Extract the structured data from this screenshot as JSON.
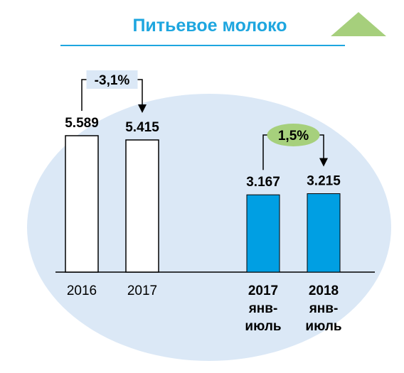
{
  "title": "Питьевое молоко",
  "colors": {
    "title": "#1ea6df",
    "ellipse": "#dbe8f6",
    "rule": "#1ea6df",
    "triangle": "#a6cf7c",
    "bar_annual": "#ffffff",
    "bar_period": "#009fe3",
    "badge_green": "#a6d07c"
  },
  "chart_data": {
    "type": "bar",
    "categories": [
      "2016",
      "2017",
      "2017 янв-июль",
      "2018 янв-июль"
    ],
    "values": [
      5589,
      5415,
      3167,
      3215
    ],
    "value_labels": [
      "5.589",
      "5.415",
      "3.167",
      "3.215"
    ],
    "x_labels": [
      [
        "2016"
      ],
      [
        "2017"
      ],
      [
        "2017",
        "янв-",
        "июль"
      ],
      [
        "2018",
        "янв-",
        "июль"
      ]
    ],
    "annotations": [
      {
        "text": "-3,1%",
        "from": 0,
        "to": 1,
        "style": "plain"
      },
      {
        "text": "1,5%",
        "from": 2,
        "to": 3,
        "style": "green-badge"
      }
    ],
    "ylim": [
      0,
      6000
    ],
    "grid": false,
    "legend": "none"
  }
}
